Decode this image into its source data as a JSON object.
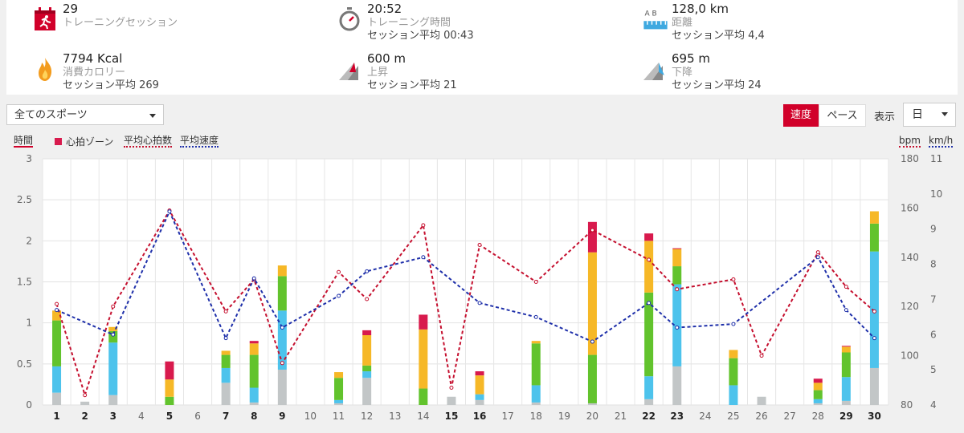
{
  "stats": [
    {
      "value": "29",
      "label": "トレーニングセッション",
      "avg": ""
    },
    {
      "value": "20:52",
      "label": "トレーニング時間",
      "avg": "セッション平均 00:43"
    },
    {
      "value": "128,0 km",
      "label": "距離",
      "avg": "セッション平均 4,4"
    },
    {
      "value": "7794 Kcal",
      "label": "消費カロリー",
      "avg": "セッション平均 269"
    },
    {
      "value": "600 m",
      "label": "上昇",
      "avg": "セッション平均 21"
    },
    {
      "value": "695 m",
      "label": "下降",
      "avg": "セッション平均 24"
    }
  ],
  "controls": {
    "sport_select": "全てのスポーツ",
    "speed_tab": "速度",
    "pace_tab": "ペース",
    "show_label": "表示",
    "period_select": "日",
    "distance_icon_letters": "A B"
  },
  "legend": {
    "time_axis": "時間",
    "hr_zone": "心拍ゾーン",
    "avg_hr": "平均心拍数",
    "avg_speed": "平均速度",
    "bpm": "bpm",
    "kmh": "km/h"
  },
  "colors": {
    "accent": "#d1002a",
    "zone_gray": "#c2c6c7",
    "zone_blue": "#4dc3ec",
    "zone_green": "#62c32d",
    "zone_yellow": "#f6b827",
    "zone_red": "#d81a4d",
    "hr_line": "#c5102f",
    "speed_line": "#1f30aa"
  },
  "chart_data": {
    "type": "bar",
    "stacked": true,
    "days": [
      "1",
      "2",
      "3",
      "4",
      "5",
      "6",
      "7",
      "8",
      "9",
      "10",
      "11",
      "12",
      "13",
      "14",
      "15",
      "16",
      "17",
      "18",
      "19",
      "20",
      "21",
      "22",
      "23",
      "24",
      "25",
      "26",
      "27",
      "28",
      "29",
      "30"
    ],
    "bold_days": [
      "1",
      "2",
      "3",
      "5",
      "7",
      "8",
      "9",
      "15",
      "16",
      "22",
      "23",
      "29",
      "30"
    ],
    "y_left": {
      "label": "時間",
      "min": 0,
      "max": 3,
      "ticks": [
        "0",
        "0.5",
        "1",
        "1.5",
        "2",
        "2.5",
        "3"
      ]
    },
    "y_hr": {
      "label": "bpm",
      "min": 80,
      "max": 180,
      "ticks": [
        "80",
        "100",
        "120",
        "140",
        "160",
        "180"
      ]
    },
    "y_speed": {
      "label": "km/h",
      "min": 4,
      "max": 11,
      "ticks": [
        "4",
        "5",
        "6",
        "7",
        "8",
        "9",
        "10",
        "11"
      ]
    },
    "series": [
      {
        "name": "zone1",
        "values": [
          0.15,
          0.04,
          0.12,
          0,
          0,
          0,
          0.27,
          0.03,
          0.43,
          0,
          0.02,
          0.33,
          0,
          0,
          0.1,
          0.06,
          0,
          0.03,
          0,
          0.02,
          0,
          0.07,
          0.47,
          0,
          0,
          0.1,
          0,
          0.02,
          0.05,
          0.45
        ]
      },
      {
        "name": "zone2",
        "values": [
          0.32,
          0,
          0.64,
          0,
          0,
          0,
          0.18,
          0.18,
          0.72,
          0,
          0.04,
          0.08,
          0,
          0,
          0,
          0.07,
          0,
          0.21,
          0,
          0,
          0,
          0.28,
          1.0,
          0,
          0.24,
          0,
          0,
          0.05,
          0.29,
          1.42
        ]
      },
      {
        "name": "zone3",
        "values": [
          0.56,
          0,
          0.14,
          0,
          0.1,
          0,
          0.16,
          0.4,
          0.42,
          0,
          0.27,
          0.07,
          0,
          0.2,
          0,
          0,
          0,
          0.51,
          0,
          0.59,
          0,
          1.02,
          0.22,
          0,
          0.33,
          0,
          0,
          0.11,
          0.3,
          0.34
        ]
      },
      {
        "name": "zone4",
        "values": [
          0.12,
          0,
          0.05,
          0,
          0.21,
          0,
          0.05,
          0.14,
          0.13,
          0,
          0.07,
          0.37,
          0,
          0.72,
          0,
          0.23,
          0,
          0.03,
          0,
          1.25,
          0,
          0.63,
          0.21,
          0,
          0.1,
          0,
          0,
          0.09,
          0.07,
          0.15
        ]
      },
      {
        "name": "zone5",
        "values": [
          0,
          0,
          0,
          0,
          0.22,
          0,
          0,
          0.03,
          0,
          0,
          0,
          0.06,
          0,
          0.18,
          0,
          0.05,
          0,
          0,
          0,
          0.37,
          0,
          0.09,
          0.01,
          0,
          0,
          0,
          0,
          0.05,
          0.01,
          0
        ]
      },
      {
        "name": "平均心拍数",
        "axis": "bpm",
        "values": [
          121,
          84,
          120,
          null,
          159,
          null,
          118,
          131,
          97,
          null,
          134,
          123,
          null,
          153,
          87,
          145,
          null,
          130,
          null,
          151,
          null,
          139,
          127,
          null,
          131,
          100,
          null,
          142,
          128,
          118
        ]
      },
      {
        "name": "平均速度",
        "axis": "km/h",
        "values": [
          6.7,
          null,
          6.0,
          null,
          9.5,
          null,
          5.9,
          7.6,
          6.2,
          null,
          7.1,
          7.8,
          null,
          8.2,
          null,
          6.9,
          null,
          6.5,
          null,
          5.8,
          null,
          6.9,
          6.2,
          null,
          6.3,
          null,
          null,
          8.2,
          6.7,
          5.9
        ]
      }
    ]
  }
}
